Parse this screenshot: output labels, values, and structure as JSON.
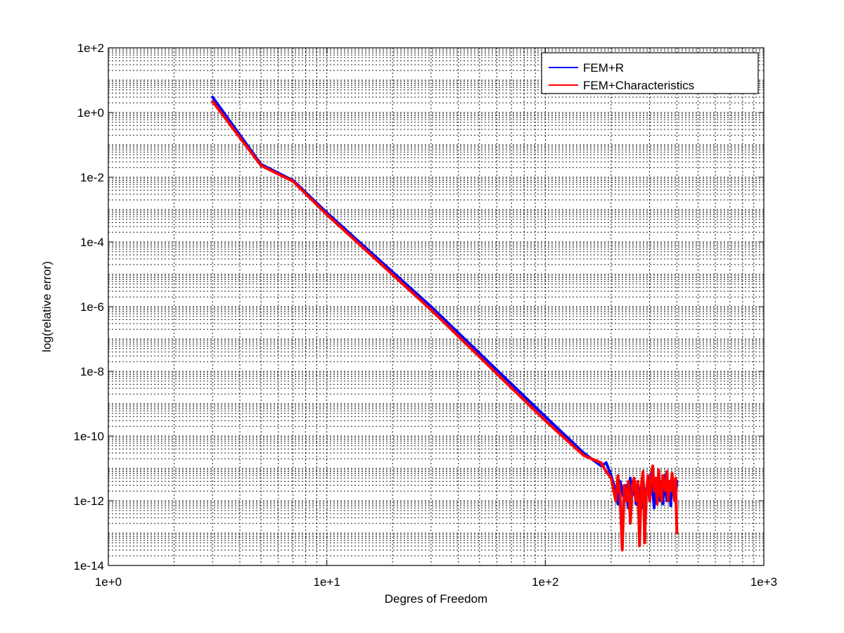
{
  "chart_data": {
    "type": "line",
    "title": "",
    "xlabel": "Degres of Freedom",
    "ylabel": "log(relative error)",
    "xscale": "log",
    "yscale": "log",
    "xlim": [
      1,
      1000
    ],
    "ylim": [
      1e-14,
      100
    ],
    "grid": true,
    "legend_position": "top-right",
    "x_tick_labels": [
      "1e+0",
      "1e+1",
      "1e+2",
      "1e+3"
    ],
    "y_tick_labels": [
      "1e-14",
      "1e-12",
      "1e-10",
      "1e-8",
      "1e-6",
      "1e-4",
      "1e-2",
      "1e+0",
      "1e+2"
    ],
    "series": [
      {
        "name": "FEM+R",
        "color": "#0000ff",
        "x": [
          3,
          5,
          7,
          10,
          30,
          100,
          150,
          180,
          190,
          200,
          210,
          215,
          220,
          225,
          230,
          235,
          240,
          245,
          250,
          255,
          260,
          265,
          270,
          275,
          280,
          285,
          290,
          295,
          300,
          305,
          310,
          315,
          320,
          325,
          330,
          335,
          340,
          345,
          350,
          355,
          360,
          365,
          370,
          375,
          380,
          385,
          390,
          395,
          400
        ],
        "y": [
          3.0,
          0.025,
          0.008,
          0.0008,
          1e-06,
          4e-10,
          3e-11,
          1.2e-11,
          1.5e-11,
          6e-12,
          2e-12,
          8e-13,
          4e-12,
          2e-12,
          1e-12,
          3e-12,
          6e-13,
          5e-12,
          1.5e-12,
          4e-12,
          8e-13,
          3e-12,
          2e-12,
          6e-13,
          5e-12,
          1e-12,
          2e-12,
          4e-12,
          1e-12,
          7e-12,
          2e-12,
          6e-13,
          5e-12,
          1.5e-12,
          3e-12,
          1e-12,
          4e-12,
          8e-13,
          6e-12,
          2e-12,
          1e-12,
          4e-12,
          3e-12,
          7e-13,
          5e-12,
          2e-12,
          3e-12,
          1.5e-12,
          4e-12
        ]
      },
      {
        "name": "FEM+Characteristics",
        "color": "#ff0000",
        "x": [
          3,
          5,
          7,
          10,
          30,
          100,
          150,
          180,
          190,
          200,
          210,
          215,
          220,
          225,
          230,
          235,
          240,
          245,
          250,
          255,
          260,
          265,
          270,
          275,
          280,
          285,
          290,
          295,
          300,
          305,
          310,
          315,
          320,
          325,
          330,
          335,
          340,
          345,
          350,
          355,
          360,
          365,
          370,
          375,
          380,
          385,
          390,
          395,
          400
        ],
        "y": [
          2.2,
          0.023,
          0.0075,
          0.0007,
          8e-07,
          3e-10,
          2.5e-11,
          1.5e-11,
          8e-12,
          5e-12,
          1e-12,
          6e-12,
          1.5e-12,
          3e-14,
          3e-12,
          1e-12,
          4e-12,
          2e-13,
          3e-12,
          5e-12,
          1e-12,
          4e-12,
          4e-14,
          3e-12,
          8e-12,
          5e-14,
          2e-12,
          6e-12,
          1e-12,
          4e-12,
          1.2e-11,
          2e-12,
          5e-12,
          8e-13,
          9e-12,
          2e-12,
          1e-12,
          6e-12,
          3e-12,
          2e-12,
          8e-12,
          1e-12,
          4e-12,
          2e-12,
          7e-12,
          3e-12,
          1e-12,
          5e-12,
          1e-13
        ]
      }
    ]
  }
}
